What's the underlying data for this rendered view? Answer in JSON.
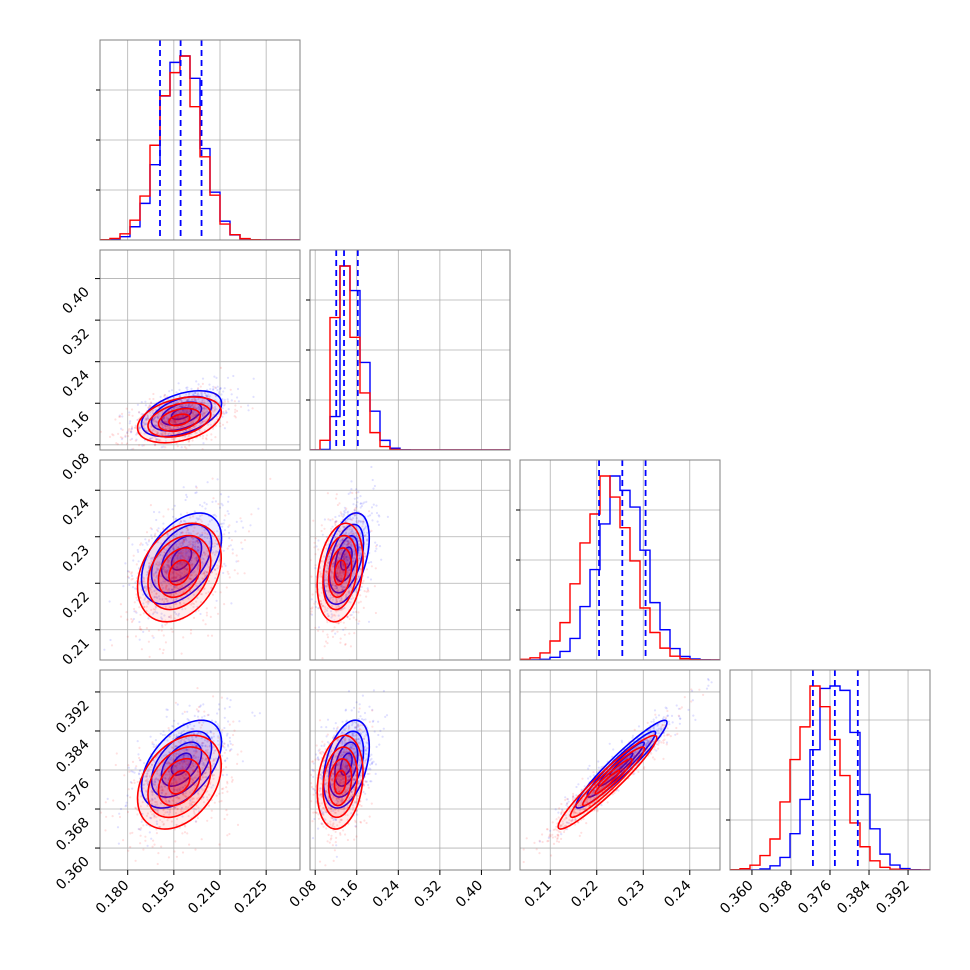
{
  "chart_data": {
    "type": "corner",
    "n_params": 4,
    "colors": {
      "series_a": "#0000ff",
      "series_b": "#ff0000",
      "grid": "#b0b0b0",
      "frame": "#808080"
    },
    "grid": true,
    "params": [
      {
        "range": [
          0.171,
          0.236
        ],
        "ticks": [
          0.18,
          0.195,
          0.21,
          0.225
        ],
        "tick_labels": [
          "0.180",
          "0.195",
          "0.210",
          "0.225"
        ]
      },
      {
        "range": [
          0.07,
          0.455
        ],
        "ticks": [
          0.08,
          0.16,
          0.24,
          0.32,
          0.4
        ],
        "tick_labels": [
          "0.08",
          "0.16",
          "0.24",
          "0.32",
          "0.40"
        ]
      },
      {
        "range": [
          0.2035,
          0.2465
        ],
        "ticks": [
          0.21,
          0.22,
          0.23,
          0.24
        ],
        "tick_labels": [
          "0.21",
          "0.22",
          "0.23",
          "0.24"
        ]
      },
      {
        "range": [
          0.3555,
          0.3965
        ],
        "ticks": [
          0.36,
          0.368,
          0.376,
          0.384,
          0.392
        ],
        "tick_labels": [
          "0.360",
          "0.368",
          "0.376",
          "0.384",
          "0.392"
        ]
      }
    ],
    "series": [
      {
        "color": "#0000ff",
        "params": [
          {
            "mean": 0.1975,
            "std": 0.0065
          },
          {
            "mean": 0.14,
            "std": 0.022
          },
          {
            "mean": 0.2253,
            "std": 0.0049
          },
          {
            "mean": 0.3772,
            "std": 0.0045
          }
        ]
      },
      {
        "color": "#ff0000",
        "params": [
          {
            "mean": 0.1968,
            "std": 0.0068
          },
          {
            "mean": 0.128,
            "std": 0.022
          },
          {
            "mean": 0.2223,
            "std": 0.0053
          },
          {
            "mean": 0.3735,
            "std": 0.0048
          }
        ]
      }
    ],
    "quantile_lines": {
      "color": "#0000ff",
      "values": [
        [
          0.1905,
          0.1972,
          0.204
        ],
        [
          0.1205,
          0.1355,
          0.162
        ],
        [
          0.2205,
          0.2255,
          0.2305
        ],
        [
          0.3725,
          0.377,
          0.3817
        ]
      ]
    },
    "correlations": {
      "series_a": {
        "1-0": 0.45,
        "2-0": 0.45,
        "2-1": 0.45,
        "3-0": 0.5,
        "3-1": 0.4,
        "3-2": 0.95
      },
      "series_b": {
        "1-0": 0.35,
        "2-0": 0.3,
        "2-1": 0.25,
        "3-0": 0.35,
        "3-1": 0.2,
        "3-2": 0.95
      }
    }
  }
}
